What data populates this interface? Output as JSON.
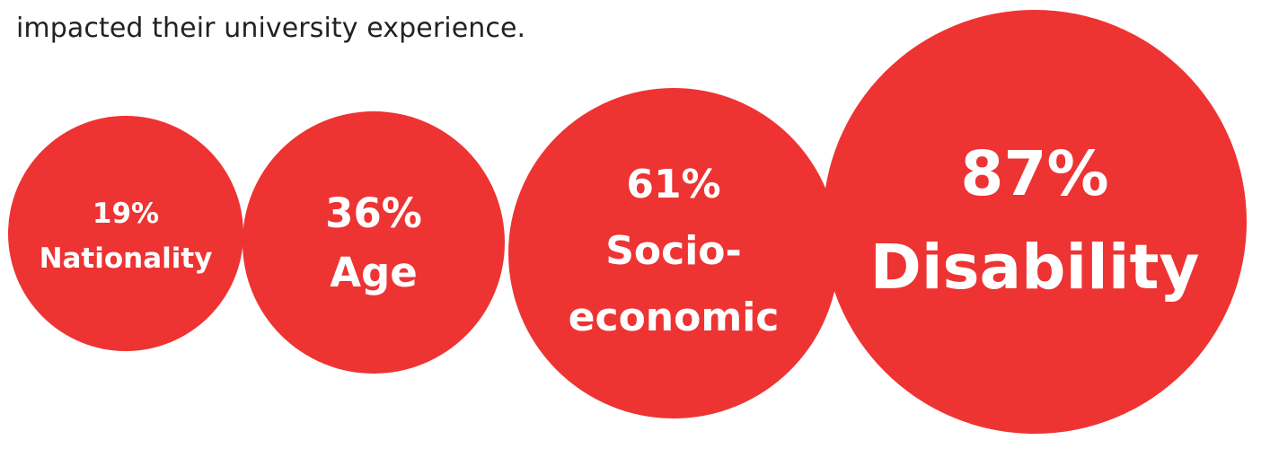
{
  "intro_text": "impacted their university experience.",
  "colors": {
    "bubble": "#ee3333",
    "text": "#ffffff",
    "intro": "#222222"
  },
  "chart_data": {
    "type": "bubble",
    "title": "",
    "unit": "%",
    "categories": [
      "Nationality",
      "Age",
      "Socio-economic",
      "Disability"
    ],
    "values": [
      19,
      36,
      61,
      87
    ],
    "labels": [
      [
        "19%",
        "Nationality"
      ],
      [
        "36%",
        "Age"
      ],
      [
        "61%",
        "Socio-",
        "economic"
      ],
      [
        "87%",
        "Disability"
      ]
    ]
  }
}
